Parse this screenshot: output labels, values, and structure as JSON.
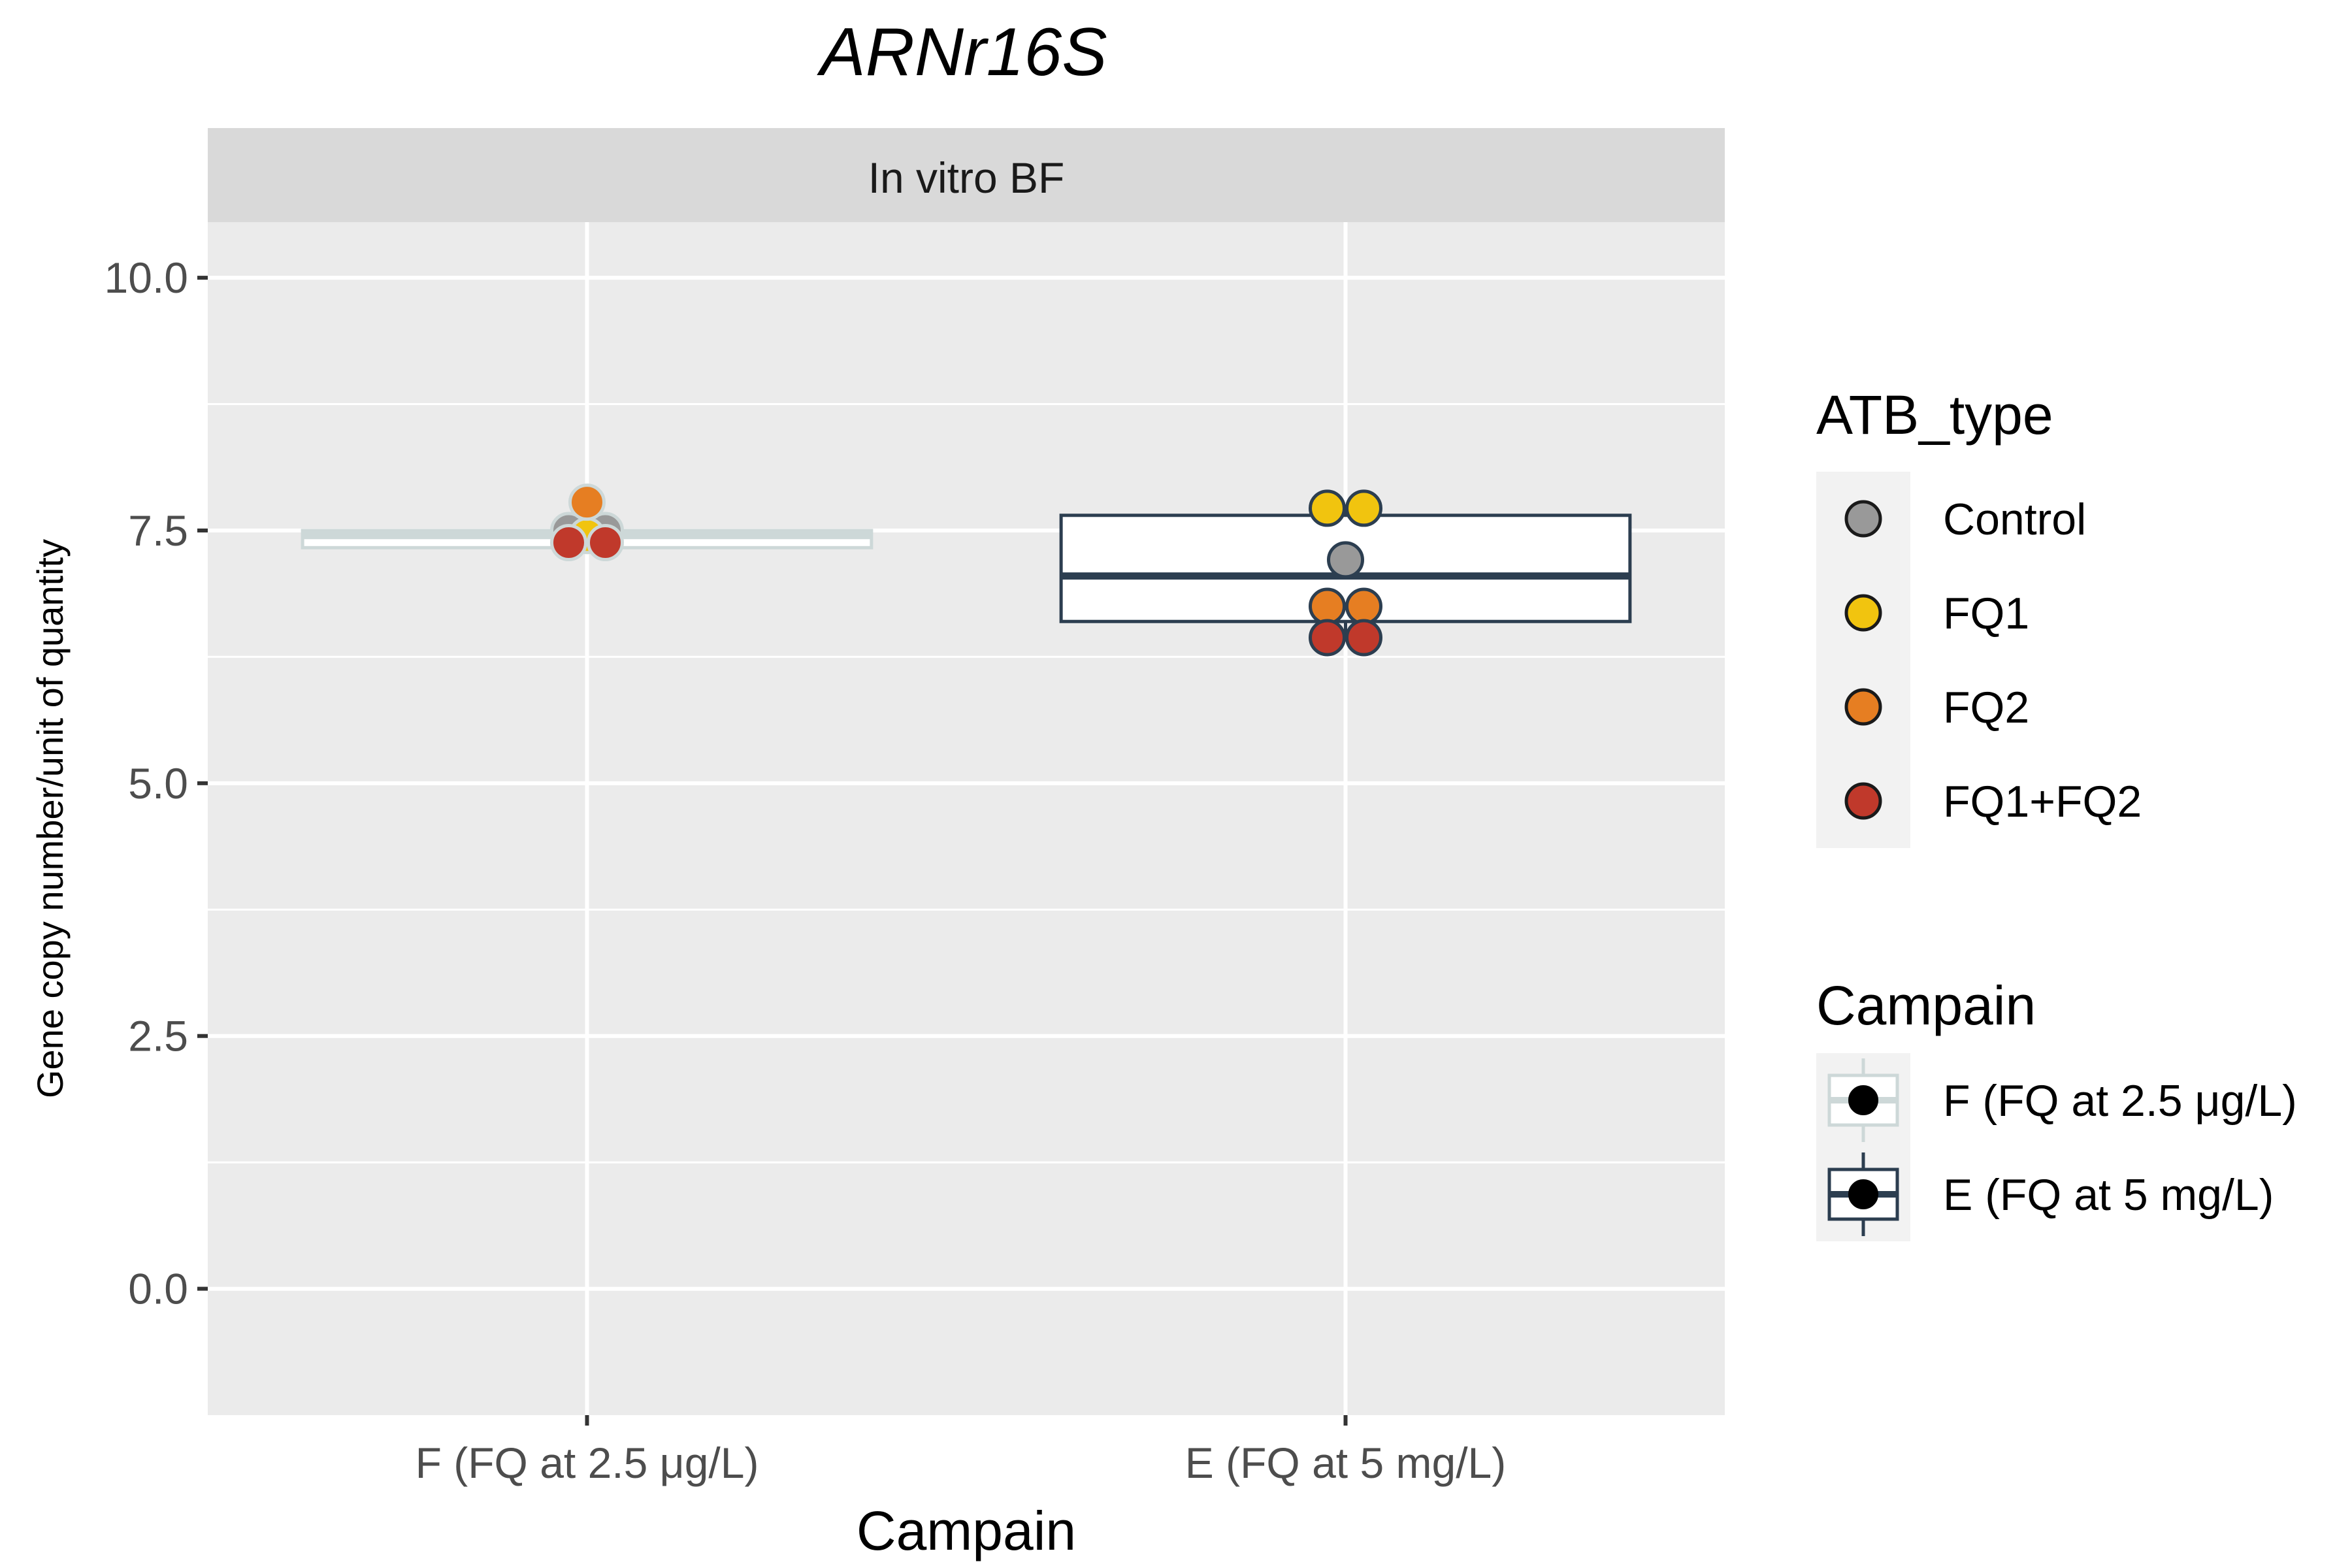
{
  "chart_data": {
    "type": "box",
    "title": "ARNr16S",
    "facet": "In vitro BF",
    "xlabel": "Campain",
    "ylabel": "Gene copy number/unit of quantity",
    "ylim": [
      -1.25,
      10.55
    ],
    "yticks": [
      0.0,
      2.5,
      5.0,
      7.5,
      10.0
    ],
    "ytick_labels": [
      "0.0",
      "2.5",
      "5.0",
      "7.5",
      "10.0"
    ],
    "grid": true,
    "categories": [
      "F (FQ at 2.5 μg/L)",
      "E (FQ at 5 mg/L)"
    ],
    "boxes": [
      {
        "category": "F (FQ at 2.5 μg/L)",
        "campain": "F (FQ at 2.5 μg/L)",
        "q1": 7.33,
        "median": 7.45,
        "q3": 7.5,
        "whisker_low": 7.28,
        "whisker_high": 7.6
      },
      {
        "category": "E (FQ at 5 mg/L)",
        "campain": "E (FQ at 5 mg/L)",
        "q1": 6.6,
        "median": 7.05,
        "q3": 7.65,
        "whisker_low": 6.45,
        "whisker_high": 7.73
      }
    ],
    "points": [
      {
        "category": "F (FQ at 2.5 μg/L)",
        "campain": "F (FQ at 2.5 μg/L)",
        "atb_type": "Control",
        "y": 7.5,
        "offset": -1
      },
      {
        "category": "F (FQ at 2.5 μg/L)",
        "campain": "F (FQ at 2.5 μg/L)",
        "atb_type": "Control",
        "y": 7.5,
        "offset": 1
      },
      {
        "category": "F (FQ at 2.5 μg/L)",
        "campain": "F (FQ at 2.5 μg/L)",
        "atb_type": "FQ1",
        "y": 7.45,
        "offset": 0
      },
      {
        "category": "F (FQ at 2.5 μg/L)",
        "campain": "F (FQ at 2.5 μg/L)",
        "atb_type": "FQ2",
        "y": 7.78,
        "offset": 0
      },
      {
        "category": "F (FQ at 2.5 μg/L)",
        "campain": "F (FQ at 2.5 μg/L)",
        "atb_type": "FQ1+FQ2",
        "y": 7.38,
        "offset": -1
      },
      {
        "category": "F (FQ at 2.5 μg/L)",
        "campain": "F (FQ at 2.5 μg/L)",
        "atb_type": "FQ1+FQ2",
        "y": 7.38,
        "offset": 1
      },
      {
        "category": "E (FQ at 5 mg/L)",
        "campain": "E (FQ at 5 mg/L)",
        "atb_type": "FQ1",
        "y": 7.72,
        "offset": -1
      },
      {
        "category": "E (FQ at 5 mg/L)",
        "campain": "E (FQ at 5 mg/L)",
        "atb_type": "FQ1",
        "y": 7.72,
        "offset": 1
      },
      {
        "category": "E (FQ at 5 mg/L)",
        "campain": "E (FQ at 5 mg/L)",
        "atb_type": "Control",
        "y": 7.21,
        "offset": 0
      },
      {
        "category": "E (FQ at 5 mg/L)",
        "campain": "E (FQ at 5 mg/L)",
        "atb_type": "FQ2",
        "y": 6.75,
        "offset": -1
      },
      {
        "category": "E (FQ at 5 mg/L)",
        "campain": "E (FQ at 5 mg/L)",
        "atb_type": "FQ2",
        "y": 6.75,
        "offset": 1
      },
      {
        "category": "E (FQ at 5 mg/L)",
        "campain": "E (FQ at 5 mg/L)",
        "atb_type": "FQ1+FQ2",
        "y": 6.44,
        "offset": -1
      },
      {
        "category": "E (FQ at 5 mg/L)",
        "campain": "E (FQ at 5 mg/L)",
        "atb_type": "FQ1+FQ2",
        "y": 6.44,
        "offset": 1
      }
    ],
    "fill_legend": {
      "title": "ATB_type",
      "entries": [
        {
          "label": "Control",
          "color": "#999999"
        },
        {
          "label": "FQ1",
          "color": "#F1C40F"
        },
        {
          "label": "FQ2",
          "color": "#E67E22"
        },
        {
          "label": "FQ1+FQ2",
          "color": "#C0392B"
        }
      ]
    },
    "color_legend": {
      "title": "Campain",
      "entries": [
        {
          "label": "F (FQ at 2.5 μg/L)",
          "color": "#CDD8D8"
        },
        {
          "label": "E (FQ at 5 mg/L)",
          "color": "#2C3E50"
        }
      ]
    },
    "colors": {
      "panel_bg": "#EBEBEB",
      "strip_bg": "#D9D9D9",
      "grid": "#FFFFFF",
      "tick": "#333333"
    }
  }
}
